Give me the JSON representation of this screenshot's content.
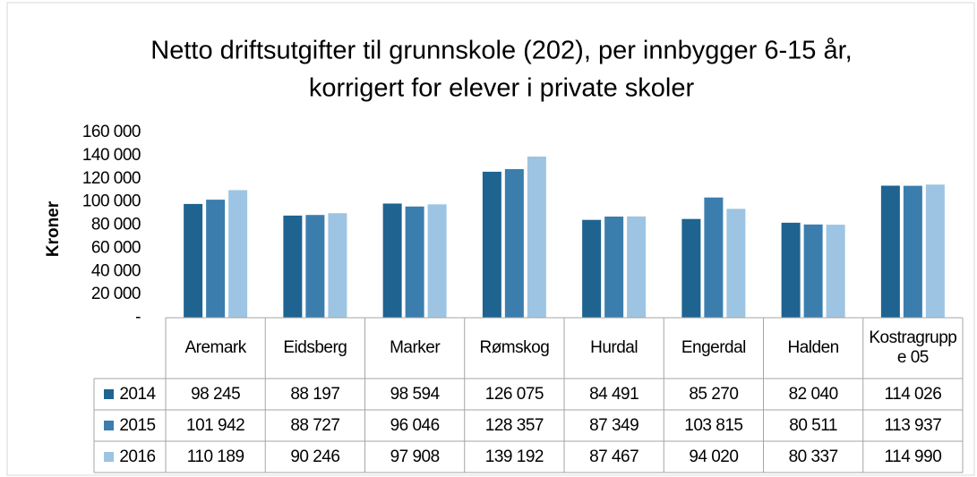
{
  "chart_data": {
    "type": "bar",
    "title": [
      "Netto driftsutgifter til grunnskole (202), per innbygger 6-15 år,",
      "korrigert for elever i private skoler"
    ],
    "y_label": "Kroner",
    "categories": [
      "Aremark",
      "Eidsberg",
      "Marker",
      "Rømskog",
      "Hurdal",
      "Engerdal",
      "Halden",
      "Kostragruppe 05"
    ],
    "series": [
      {
        "name": "2014",
        "color": "#1f6391",
        "values": [
          98245,
          88197,
          98594,
          126075,
          84491,
          85270,
          82040,
          114026
        ],
        "value_labels": [
          "98 245",
          "88 197",
          "98 594",
          "126 075",
          "84 491",
          "85 270",
          "82 040",
          "114 026"
        ]
      },
      {
        "name": "2015",
        "color": "#3b7eae",
        "values": [
          101942,
          88727,
          96046,
          128357,
          87349,
          103815,
          80511,
          113937
        ],
        "value_labels": [
          "101 942",
          "88 727",
          "96 046",
          "128 357",
          "87 349",
          "103 815",
          "80 511",
          "113 937"
        ]
      },
      {
        "name": "2016",
        "color": "#9dc4e2",
        "values": [
          110189,
          90246,
          97908,
          139192,
          87467,
          94020,
          80337,
          114990
        ],
        "value_labels": [
          "110 189",
          "90 246",
          "97 908",
          "139 192",
          "87 467",
          "94 020",
          "80 337",
          "114 990"
        ]
      }
    ],
    "ylim": [
      0,
      160000
    ],
    "yticks": [
      {
        "value": 0,
        "label": "-"
      },
      {
        "value": 20000,
        "label": "20 000"
      },
      {
        "value": 40000,
        "label": "40 000"
      },
      {
        "value": 60000,
        "label": "60 000"
      },
      {
        "value": 80000,
        "label": "80 000"
      },
      {
        "value": 100000,
        "label": "100 000"
      },
      {
        "value": 120000,
        "label": "120 000"
      },
      {
        "value": 140000,
        "label": "140 000"
      },
      {
        "value": 160000,
        "label": "160 000"
      }
    ],
    "grid": false,
    "data_table": true
  }
}
